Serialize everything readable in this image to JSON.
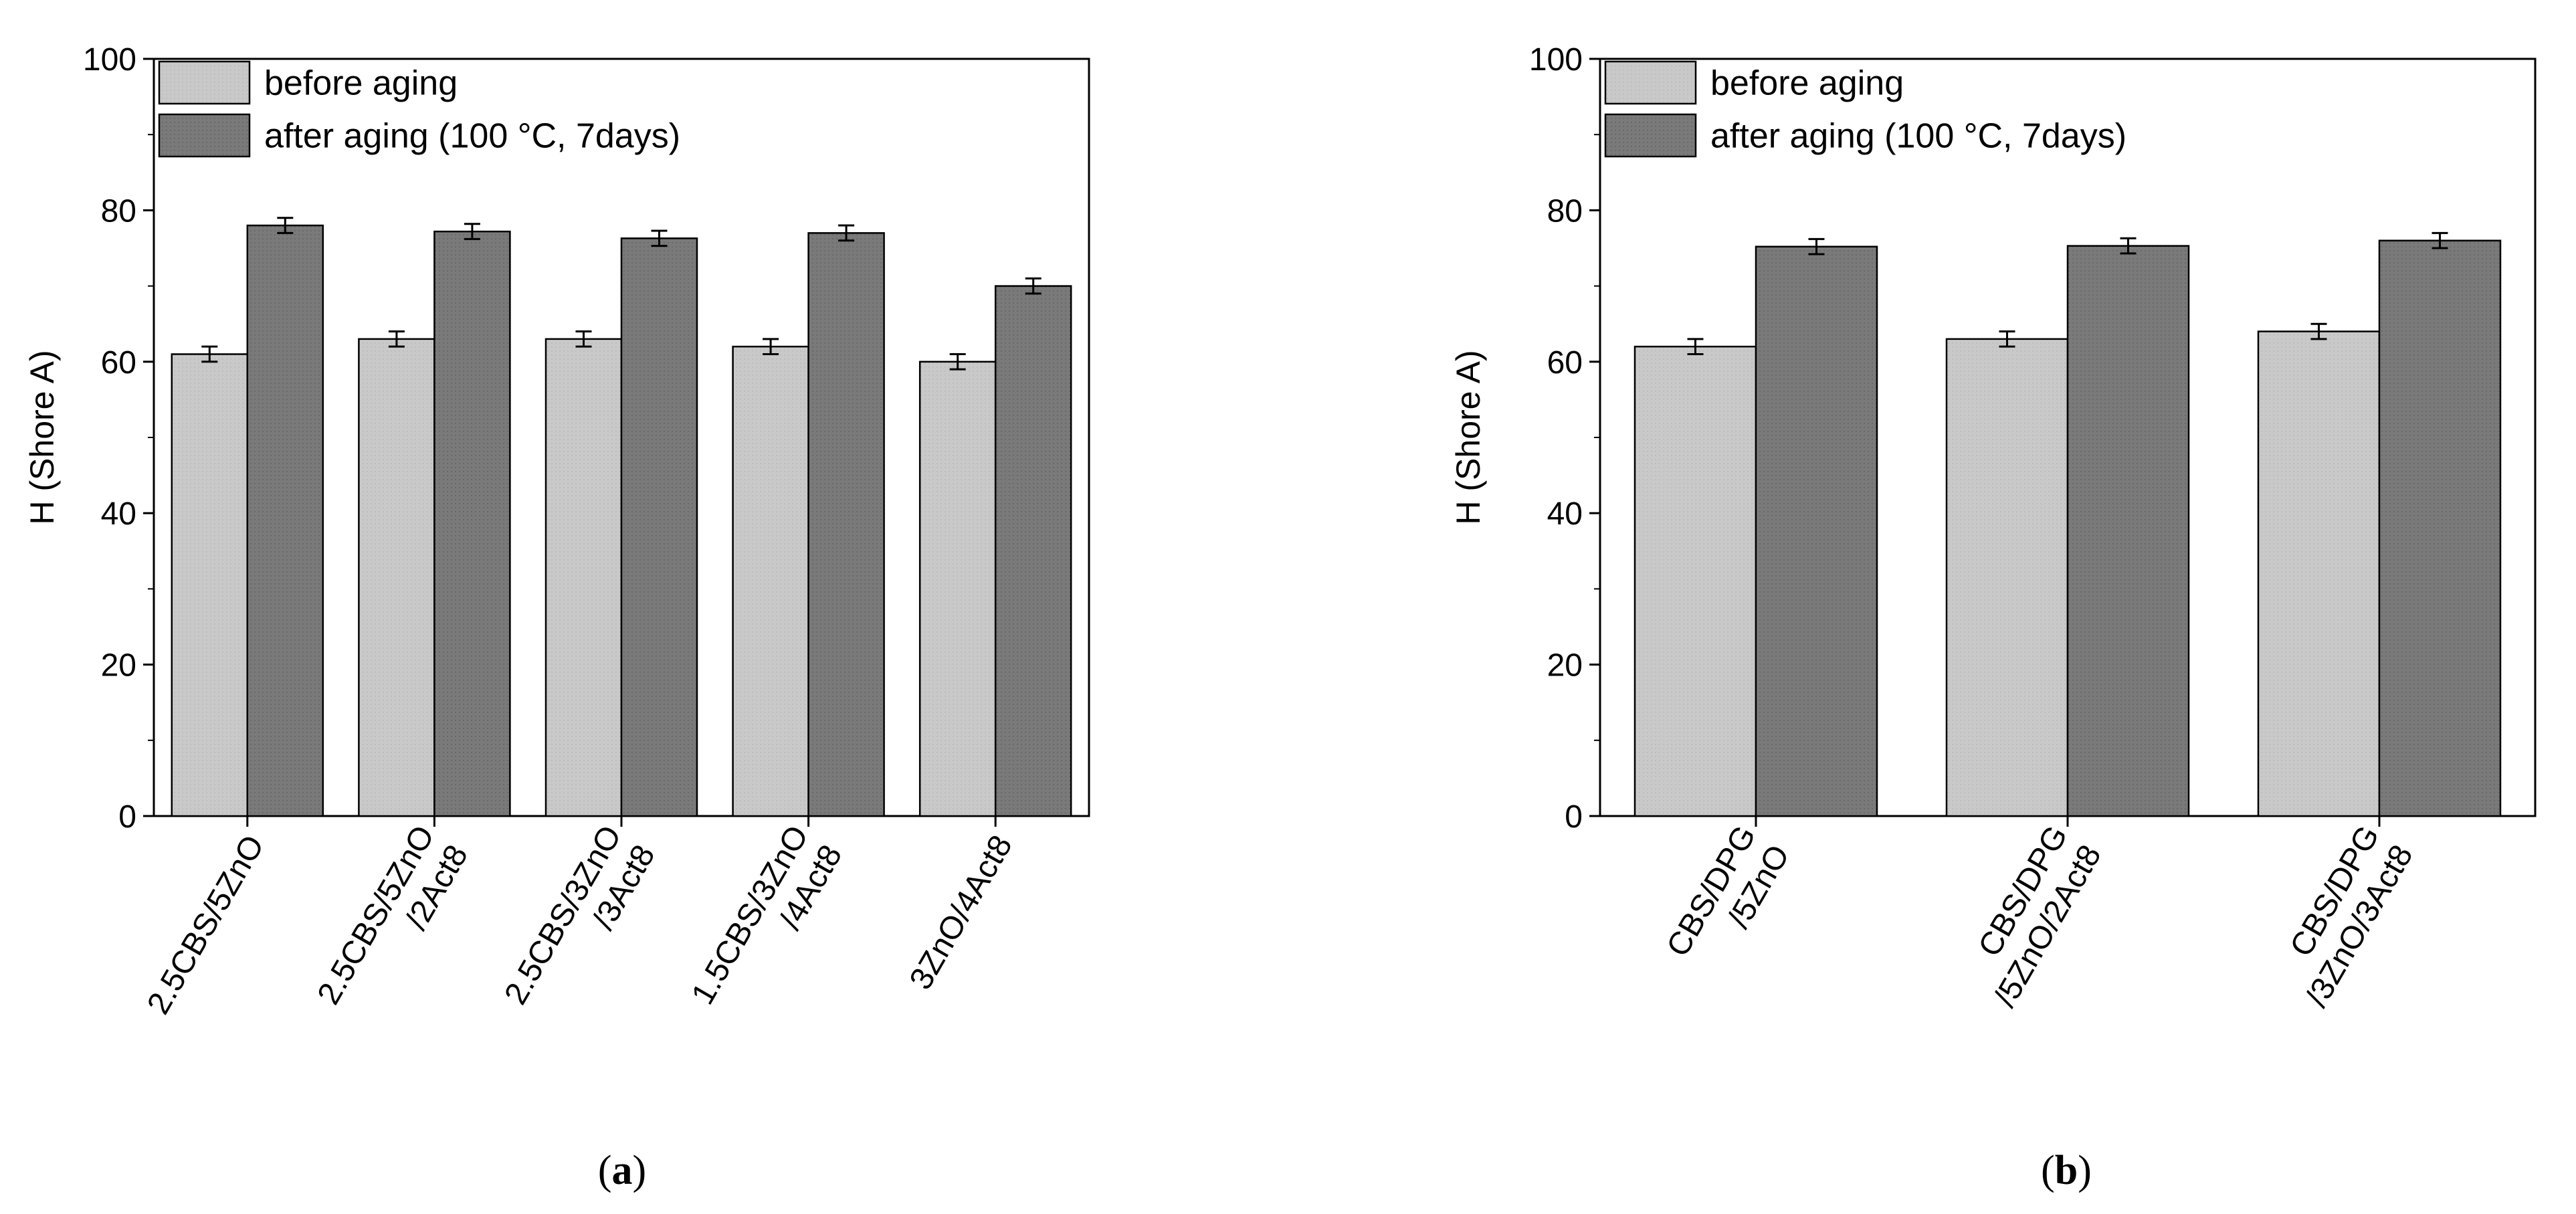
{
  "figure": {
    "panels": [
      "(a)",
      "(b)"
    ]
  },
  "chart_data": [
    {
      "type": "bar",
      "panel": "a",
      "panel_label": {
        "open": "(",
        "letter": "a",
        "close": ")"
      },
      "ylabel": "H (Shore A)",
      "xlabel": "",
      "ylim": [
        0,
        100
      ],
      "yticks": [
        "0",
        "20",
        "40",
        "60",
        "80",
        "100"
      ],
      "categories": [
        [
          "2.5CBS/5ZnO"
        ],
        [
          "2.5CBS/5ZnO",
          "/2Act8"
        ],
        [
          "2.5CBS/3ZnO",
          "/3Act8"
        ],
        [
          "1.5CBS/3ZnO",
          "/4Act8"
        ],
        [
          "3ZnO/4Act8"
        ]
      ],
      "series": [
        {
          "name": "before aging",
          "color": "#c8c8c8",
          "values": [
            61,
            63,
            63,
            62,
            60
          ],
          "errors": [
            1.0,
            1.0,
            1.0,
            1.0,
            1.0
          ]
        },
        {
          "name": "after aging (100 °C, 7days)",
          "color": "#7a7a7a",
          "values": [
            78,
            77.2,
            76.3,
            77,
            70
          ],
          "errors": [
            1.0,
            1.0,
            1.0,
            1.0,
            1.0
          ]
        }
      ],
      "legend": "top-left"
    },
    {
      "type": "bar",
      "panel": "b",
      "panel_label": {
        "open": "(",
        "letter": "b",
        "close": ")"
      },
      "ylabel": "H (Shore A)",
      "xlabel": "",
      "ylim": [
        0,
        100
      ],
      "yticks": [
        "0",
        "20",
        "40",
        "60",
        "80",
        "100"
      ],
      "categories": [
        [
          "CBS/DPG",
          "/5ZnO"
        ],
        [
          "CBS/DPG",
          "/5ZnO/2Act8"
        ],
        [
          "CBS/DPG",
          "/3ZnO/3Act8"
        ]
      ],
      "series": [
        {
          "name": "before aging",
          "color": "#c8c8c8",
          "values": [
            62,
            63,
            64
          ],
          "errors": [
            1.0,
            1.0,
            1.0
          ]
        },
        {
          "name": "after aging (100 °C, 7days)",
          "color": "#7a7a7a",
          "values": [
            75.2,
            75.3,
            76
          ],
          "errors": [
            1.0,
            1.0,
            1.0
          ]
        }
      ],
      "legend": "top-left"
    }
  ]
}
